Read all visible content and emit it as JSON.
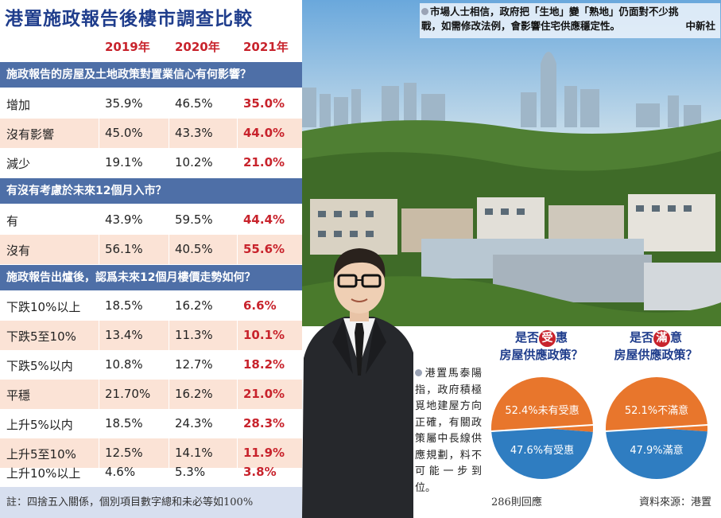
{
  "table": {
    "title": "港置施政報告後樓市調查比較",
    "years": [
      "2019年",
      "2020年",
      "2021年"
    ],
    "sections": [
      {
        "question": "施政報告的房屋及土地政策對置業信心有何影響？",
        "rows": [
          {
            "label": "增加",
            "v2019": "35.9%",
            "v2020": "46.5%",
            "v2021": "35.0%"
          },
          {
            "label": "沒有影響",
            "v2019": "45.0%",
            "v2020": "43.3%",
            "v2021": "44.0%"
          },
          {
            "label": "減少",
            "v2019": "19.1%",
            "v2020": "10.2%",
            "v2021": "21.0%"
          }
        ]
      },
      {
        "question": "有沒有考慮於未來12個月入市？",
        "rows": [
          {
            "label": "有",
            "v2019": "43.9%",
            "v2020": "59.5%",
            "v2021": "44.4%"
          },
          {
            "label": "沒有",
            "v2019": "56.1%",
            "v2020": "40.5%",
            "v2021": "55.6%"
          }
        ]
      },
      {
        "question": "施政報告出爐後，認爲未來12個月樓價走勢如何？",
        "rows": [
          {
            "label": "下跌10%以上",
            "v2019": "18.5%",
            "v2020": "16.2%",
            "v2021": "6.6%"
          },
          {
            "label": "下跌5至10%",
            "v2019": "13.4%",
            "v2020": "11.3%",
            "v2021": "10.1%"
          },
          {
            "label": "下跌5%以内",
            "v2019": "10.8%",
            "v2020": "12.7%",
            "v2021": "18.2%"
          },
          {
            "label": "平穩",
            "v2019": "21.70%",
            "v2020": "16.2%",
            "v2021": "21.0%"
          },
          {
            "label": "上升5%以内",
            "v2019": "18.5%",
            "v2020": "24.3%",
            "v2021": "28.3%"
          },
          {
            "label": "上升5至10%",
            "v2019": "12.5%",
            "v2020": "14.1%",
            "v2021": "11.9%"
          },
          {
            "label": "上升10%以上",
            "v2019": "4.6%",
            "v2020": "5.3%",
            "v2021": "3.8%"
          }
        ]
      }
    ],
    "note": "註：四捨五入關係，個別項目數字總和未必等如100%"
  },
  "photo": {
    "caption_line1": "市場人士相信，政府把「生地」變「熟地」仍面對不少挑",
    "caption_line2": "戰，如需修改法例，會影響住宅供應穩定性。",
    "caption_source": "中新社"
  },
  "quote": {
    "text": "港置馬泰陽指，政府積極覓地建屋方向正確，有關政策屬中長線供應規劃，料不可能一步到位。"
  },
  "pies": {
    "pie1": {
      "title_prefix": "是否",
      "badge": "受",
      "title_mid": "惠",
      "title_line2": "房屋供應政策？",
      "slices": [
        {
          "label": "52.4%未有受惠",
          "value": 52.4,
          "color": "#e8762c"
        },
        {
          "label": "47.6%有受惠",
          "value": 47.6,
          "color": "#2f7dc1"
        }
      ]
    },
    "pie2": {
      "title_prefix": "是否",
      "badge": "滿",
      "title_mid": "意",
      "title_line2": "房屋供應政策？",
      "slices": [
        {
          "label": "52.1%不滿意",
          "value": 52.1,
          "color": "#e8762c"
        },
        {
          "label": "47.9%滿意",
          "value": 47.9,
          "color": "#2f7dc1"
        }
      ]
    }
  },
  "responses": "286則回應",
  "source": "資料來源：港置"
}
